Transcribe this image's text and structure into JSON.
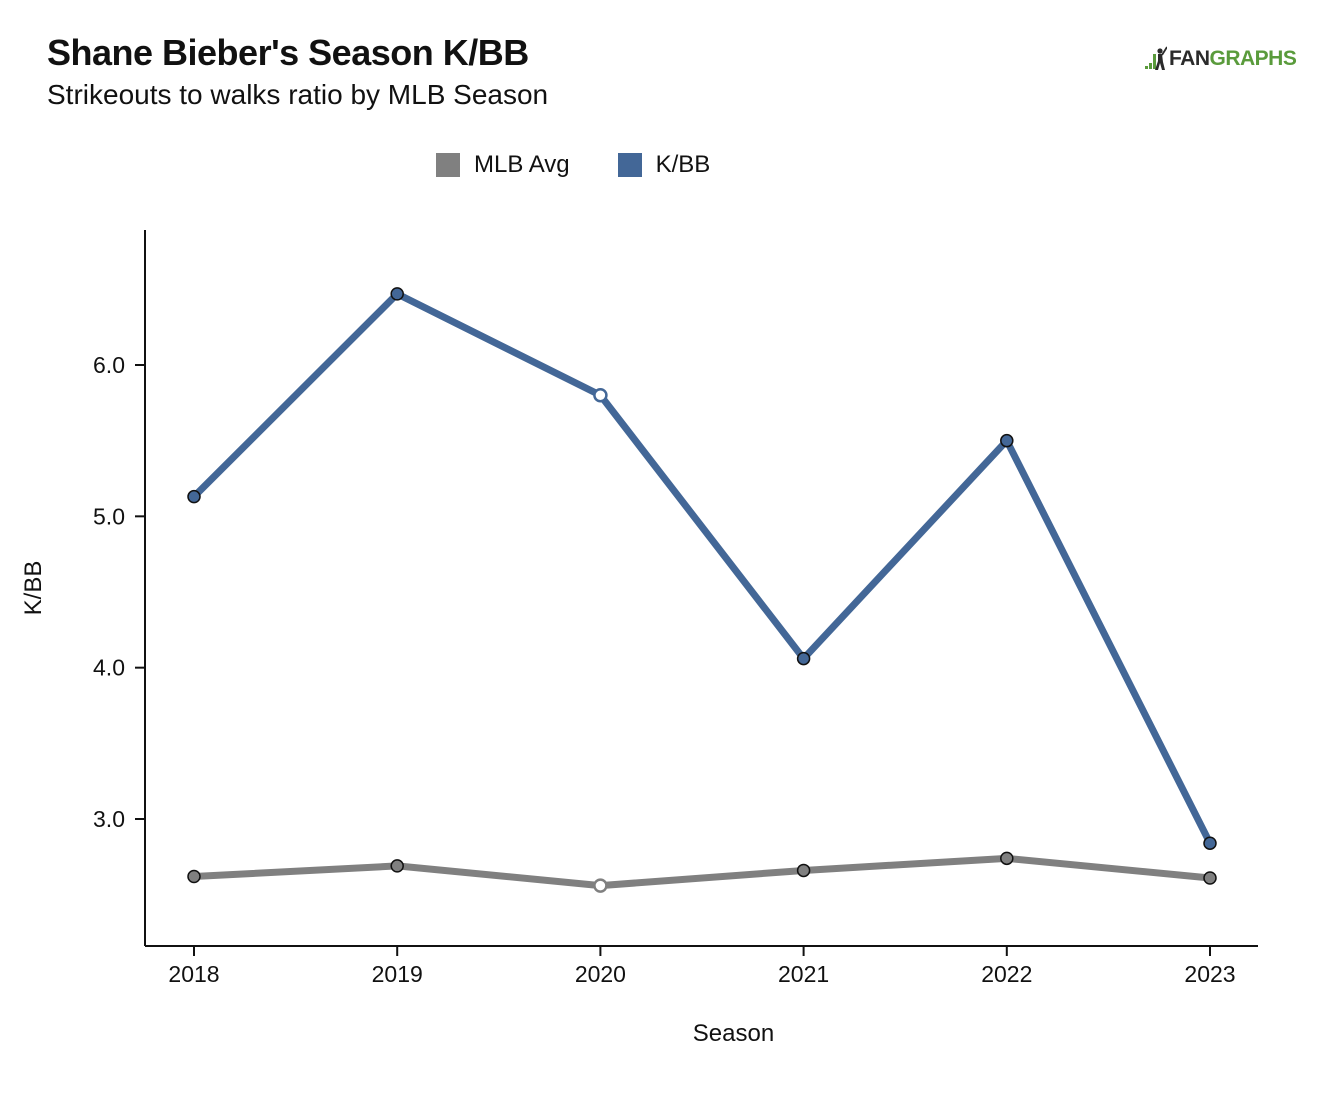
{
  "header": {
    "title": "Shane Bieber's Season K/BB",
    "subtitle": "Strikeouts to walks ratio by MLB Season"
  },
  "logo": {
    "part1": "FAN",
    "part2": "GRAPHS",
    "icon": "batter-silhouette-icon"
  },
  "colors": {
    "kbb": "#436797",
    "mlb_avg": "#808080",
    "logo_green": "#5a9b3c"
  },
  "chart_data": {
    "type": "line",
    "x": [
      "2018",
      "2019",
      "2020",
      "2021",
      "2022",
      "2023"
    ],
    "series": [
      {
        "name": "MLB Avg",
        "color": "#808080",
        "values": [
          2.62,
          2.69,
          2.56,
          2.66,
          2.74,
          2.61
        ]
      },
      {
        "name": "K/BB",
        "color": "#436797",
        "values": [
          5.13,
          6.47,
          5.8,
          4.06,
          5.5,
          2.84
        ]
      }
    ],
    "highlight_index": 2,
    "xlabel": "Season",
    "ylabel": "K/BB",
    "yticks": [
      "3.0",
      "4.0",
      "5.0",
      "6.0"
    ],
    "legend_position": "top-center",
    "grid": false
  }
}
